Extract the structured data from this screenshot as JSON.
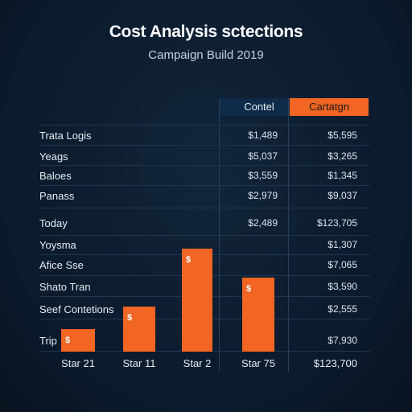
{
  "title": "Cost Analysis sctections",
  "subtitle": "Campaign Build 2019",
  "columns": [
    "Contel",
    "Cartatgn"
  ],
  "colors": {
    "background": "#0c1b2e",
    "accent": "#f26522",
    "header_dark": "#0f2b4a"
  },
  "chart_data": [
    {
      "type": "table",
      "columns": [
        "",
        "Contel",
        "Cartatgn"
      ],
      "rows": [
        {
          "label": "Trata Logis",
          "v1": "$1,489",
          "v2": "$5,595"
        },
        {
          "label": "Yeags",
          "v1": "$5,037",
          "v2": "$3,265"
        },
        {
          "label": "Baloes",
          "v1": "$3,559",
          "v2": "$1,345"
        },
        {
          "label": "Panass",
          "v1": "$2,979",
          "v2": "$9,037"
        },
        {
          "label": "Today",
          "v1": "$2,489",
          "v2": "$123,705"
        },
        {
          "label": "Yoysma",
          "v1": "",
          "v2": "$1,307"
        },
        {
          "label": "Afice Sse",
          "v1": "",
          "v2": "$7,065"
        },
        {
          "label": "Shato Tran",
          "v1": "",
          "v2": "$3,590"
        },
        {
          "label": "Seef Contetions",
          "v1": "",
          "v2": "$2,555"
        },
        {
          "label": "Trip",
          "v1": "",
          "v2": "$7,930"
        }
      ],
      "total": "$123,700"
    },
    {
      "type": "bar",
      "categories": [
        "Star 21",
        "Star 11",
        "Star 2",
        "Star 75"
      ],
      "values": [
        14,
        28,
        64,
        46
      ],
      "value_unit": "relative height (0-100)",
      "bar_label": "$",
      "ylim": [
        0,
        100
      ],
      "grid": false
    }
  ]
}
